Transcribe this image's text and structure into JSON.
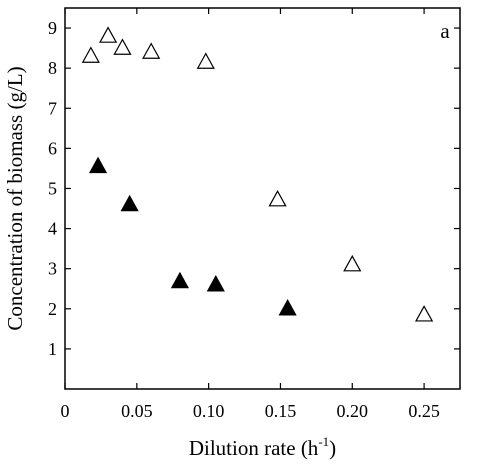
{
  "chart_data": {
    "type": "scatter",
    "panel_label": "a",
    "xlabel": "Dilution rate (h",
    "xlabel_sup": "-1",
    "xlabel_end": ")",
    "ylabel": "Concentration of biomass (g/L)",
    "xlim": [
      0,
      0.275
    ],
    "ylim": [
      0,
      9.5
    ],
    "x_ticks": [
      0,
      0.05,
      0.1,
      0.15,
      0.2,
      0.25
    ],
    "x_tick_labels": [
      "0",
      "0.05",
      "0.10",
      "0.15",
      "0.20",
      "0.25"
    ],
    "y_ticks": [
      1,
      2,
      3,
      4,
      5,
      6,
      7,
      8,
      9
    ],
    "y_tick_labels": [
      "1",
      "2",
      "3",
      "4",
      "5",
      "6",
      "7",
      "8",
      "9"
    ],
    "grid": false,
    "series": [
      {
        "marker": "open-triangle",
        "points": [
          {
            "x": 0.018,
            "y": 8.3
          },
          {
            "x": 0.03,
            "y": 8.8
          },
          {
            "x": 0.04,
            "y": 8.5
          },
          {
            "x": 0.06,
            "y": 8.4
          },
          {
            "x": 0.098,
            "y": 8.15
          },
          {
            "x": 0.148,
            "y": 4.72
          },
          {
            "x": 0.2,
            "y": 3.1
          },
          {
            "x": 0.25,
            "y": 1.85
          }
        ]
      },
      {
        "marker": "filled-triangle",
        "points": [
          {
            "x": 0.023,
            "y": 5.55
          },
          {
            "x": 0.045,
            "y": 4.6
          },
          {
            "x": 0.08,
            "y": 2.68
          },
          {
            "x": 0.105,
            "y": 2.6
          },
          {
            "x": 0.155,
            "y": 2.0
          }
        ]
      }
    ]
  }
}
